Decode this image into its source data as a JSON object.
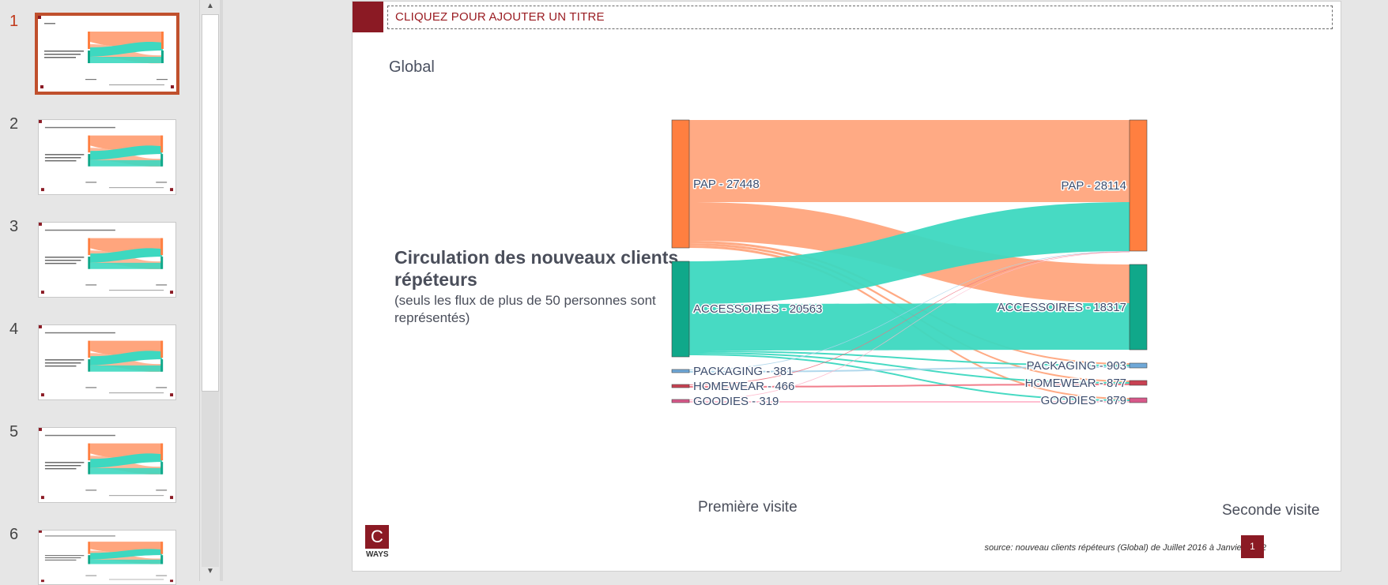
{
  "thumbnails": [
    {
      "number": "1",
      "active": true
    },
    {
      "number": "2",
      "active": false
    },
    {
      "number": "3",
      "active": false
    },
    {
      "number": "4",
      "active": false
    },
    {
      "number": "5",
      "active": false
    },
    {
      "number": "6",
      "active": false
    }
  ],
  "slide": {
    "title_placeholder": "CLIQUEZ POUR AJOUTER UN TITRE",
    "section_label": "Global",
    "heading": "Circulation des nouveaux clients répéteurs",
    "subheading": "(seuls les flux de plus de 50 personnes sont représentés)",
    "axis_left": "Première visite",
    "axis_right": "Seconde visite",
    "logo_letter": "C",
    "logo_text": "WAYS",
    "source": "source: nouveau clients répéteurs (Global) de Juillet 2016 à Janvier 2022",
    "page_number": "1"
  },
  "chart_data": {
    "type": "sankey",
    "sources": [
      {
        "label": "PAP - 27448",
        "color": "#ff7f40"
      },
      {
        "label": "ACCESSOIRES - 20563",
        "color": "#10a88a"
      },
      {
        "label": "PACKAGING - 381",
        "color": "#6fa8d8"
      },
      {
        "label": "HOMEWEAR - 466",
        "color": "#c84152"
      },
      {
        "label": "GOODIES - 319",
        "color": "#d8588a"
      }
    ],
    "targets": [
      {
        "label": "PAP - 28114",
        "color": "#ff7f40"
      },
      {
        "label": "ACCESSOIRES - 18317",
        "color": "#10a88a"
      },
      {
        "label": "PACKAGING - 903",
        "color": "#6fa8d8"
      },
      {
        "label": "HOMEWEAR - 877",
        "color": "#c84152"
      },
      {
        "label": "GOODIES - 879",
        "color": "#d8588a"
      }
    ],
    "link_colors": {
      "PAP": "#ffa57d",
      "ACCESSOIRES": "#3dd8c0",
      "PACKAGING": "#a8d4ea",
      "HOMEWEAR": "#f07080",
      "GOODIES": "#ffb8cc"
    }
  }
}
